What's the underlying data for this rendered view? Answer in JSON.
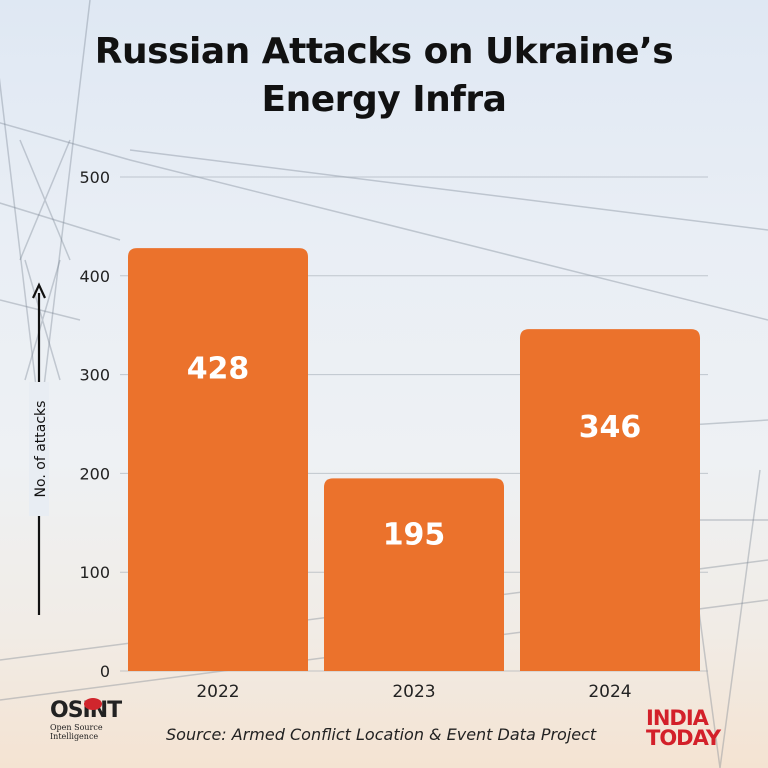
{
  "chart_data": {
    "type": "bar",
    "title": "Russian Attacks on Ukraine’s Energy Infra",
    "title_lines": [
      "Russian Attacks on Ukraine’s",
      "Energy Infra"
    ],
    "categories": [
      "2022",
      "2023",
      "2024"
    ],
    "values": [
      428,
      195,
      346
    ],
    "data_labels": [
      "428",
      "195",
      "346"
    ],
    "ylabel": "No. of attacks",
    "xlabel": "",
    "ylim": [
      0,
      500
    ],
    "yticks": [
      "0",
      "100",
      "200",
      "300",
      "400",
      "500"
    ],
    "grid": true,
    "bar_color": "#eb722c",
    "data_label_color": "#ffffff"
  },
  "footer": {
    "source": "Source: Armed Conflict Location & Event Data Project"
  },
  "logos": {
    "osint_mark": "OSINT",
    "osint_sub": "Open Source Intelligence",
    "india_today_line1": "INDIA",
    "india_today_line2": "TODAY"
  }
}
